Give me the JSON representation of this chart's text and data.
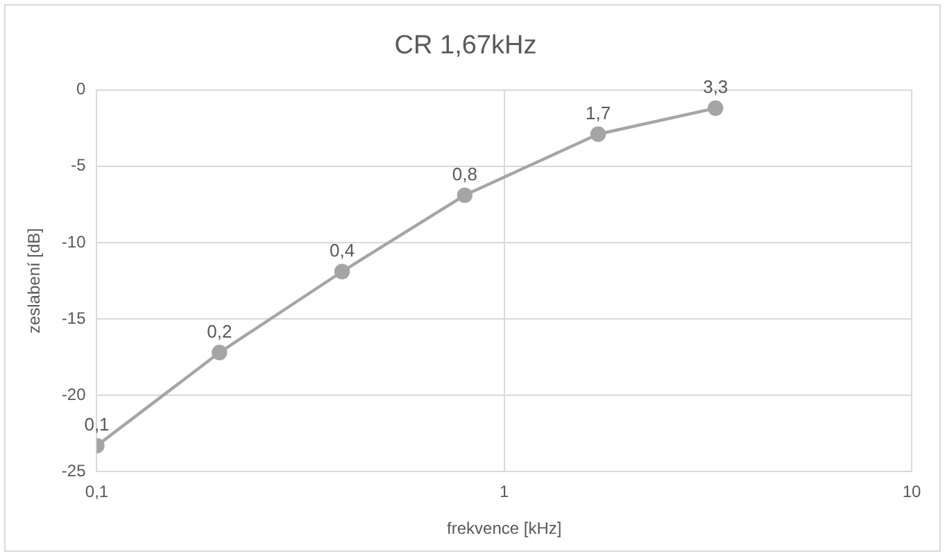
{
  "chart_data": {
    "type": "line",
    "title": "CR 1,67kHz",
    "xlabel": "frekvence [kHz]",
    "ylabel": "zeslabení [dB]",
    "x": [
      0.1,
      0.2,
      0.4,
      0.8,
      1.7,
      3.3
    ],
    "series": [
      {
        "color": "#a5a5a5",
        "values": [
          -23.3,
          -17.2,
          -11.9,
          -6.9,
          -2.9,
          -1.2
        ]
      }
    ],
    "annotations": [
      {
        "text": "0,1",
        "x": 0.1,
        "y": -23.3
      },
      {
        "text": "0,2",
        "x": 0.2,
        "y": -17.2
      },
      {
        "text": "0,4",
        "x": 0.4,
        "y": -11.9
      },
      {
        "text": "0,8",
        "x": 0.8,
        "y": -6.9
      },
      {
        "text": "1,7",
        "x": 1.7,
        "y": -2.9
      },
      {
        "text": "3,3",
        "x": 3.3,
        "y": -1.2
      }
    ],
    "log": "x",
    "xlim": [
      0.1,
      10
    ],
    "xticks": [
      {
        "value": 0.1,
        "label": "0,1"
      },
      1,
      10
    ],
    "ylim": [
      -25,
      0
    ],
    "yticks": [
      -25,
      -20,
      -15,
      -10,
      -5,
      0
    ],
    "grid": true,
    "legend": false,
    "marker": "circle",
    "line_style": "solid"
  }
}
